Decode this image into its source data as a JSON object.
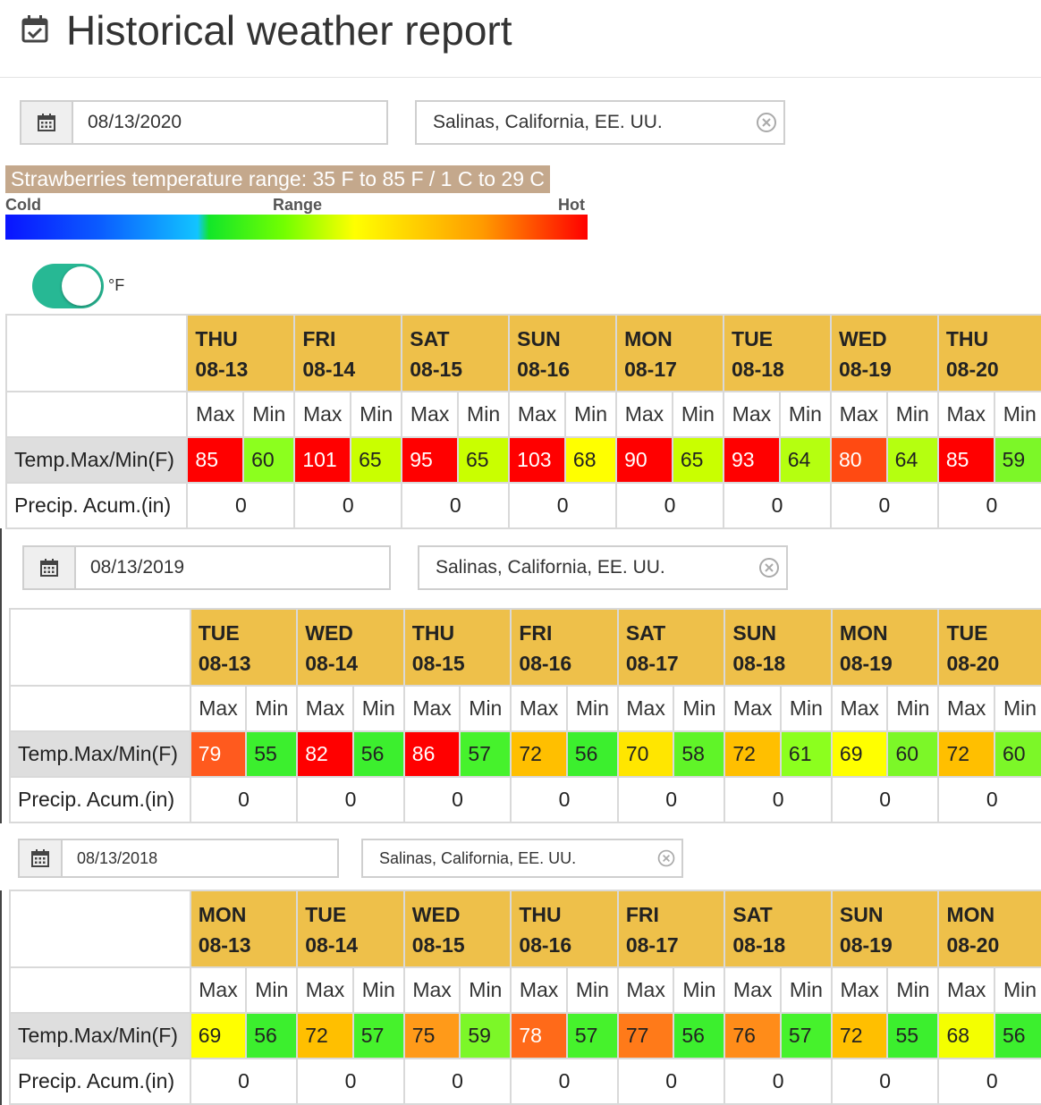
{
  "header": {
    "title": "Historical weather report",
    "icon": "calendar-check-icon"
  },
  "range_banner": "Strawberries temperature range: 35 F to 85 F / 1 C to 29 C",
  "legend": {
    "cold": "Cold",
    "range": "Range",
    "hot": "Hot"
  },
  "unit_toggle": {
    "on": true,
    "unit": "°F"
  },
  "labels": {
    "max": "Max",
    "min": "Min",
    "temp_row": "Temp.Max/Min(F)",
    "precip_row": "Precip. Acum.(in)"
  },
  "colors": {
    "red": "#ff0000",
    "orange_red": "#ff5a1e",
    "orange": "#ff8c19",
    "amber": "#ffbf00",
    "yellow": "#ffff00",
    "yellow_green": "#c9ff00",
    "lime": "#8cff1e",
    "green": "#3cef2e",
    "header_gold": "#eec04a",
    "toggle_teal": "#27b894",
    "banner_tan": "#c4a88c"
  },
  "reports": [
    {
      "date": "08/13/2020",
      "location": "Salinas, California, EE. UU.",
      "days": [
        {
          "dow": "THU",
          "date": "08-13",
          "max": "85",
          "min": "60",
          "precip": "0",
          "max_color": "#ff0000",
          "min_color": "#8cff1e"
        },
        {
          "dow": "FRI",
          "date": "08-14",
          "max": "101",
          "min": "65",
          "precip": "0",
          "max_color": "#ff0000",
          "min_color": "#c9ff00"
        },
        {
          "dow": "SAT",
          "date": "08-15",
          "max": "95",
          "min": "65",
          "precip": "0",
          "max_color": "#ff0000",
          "min_color": "#c9ff00"
        },
        {
          "dow": "SUN",
          "date": "08-16",
          "max": "103",
          "min": "68",
          "precip": "0",
          "max_color": "#ff0000",
          "min_color": "#ffff00"
        },
        {
          "dow": "MON",
          "date": "08-17",
          "max": "90",
          "min": "65",
          "precip": "0",
          "max_color": "#ff0000",
          "min_color": "#c9ff00"
        },
        {
          "dow": "TUE",
          "date": "08-18",
          "max": "93",
          "min": "64",
          "precip": "0",
          "max_color": "#ff0000",
          "min_color": "#b5ff10"
        },
        {
          "dow": "WED",
          "date": "08-19",
          "max": "80",
          "min": "64",
          "precip": "0",
          "max_color": "#ff4a12",
          "min_color": "#b5ff10"
        },
        {
          "dow": "THU",
          "date": "08-20",
          "max": "85",
          "min": "59",
          "precip": "0",
          "max_color": "#ff0000",
          "min_color": "#7cf728"
        }
      ]
    },
    {
      "date": "08/13/2019",
      "location": "Salinas, California, EE. UU.",
      "days": [
        {
          "dow": "TUE",
          "date": "08-13",
          "max": "79",
          "min": "55",
          "precip": "0",
          "max_color": "#ff5a1e",
          "min_color": "#3cef2e"
        },
        {
          "dow": "WED",
          "date": "08-14",
          "max": "82",
          "min": "56",
          "precip": "0",
          "max_color": "#ff0000",
          "min_color": "#3cef2e"
        },
        {
          "dow": "THU",
          "date": "08-15",
          "max": "86",
          "min": "57",
          "precip": "0",
          "max_color": "#ff0000",
          "min_color": "#46f22c"
        },
        {
          "dow": "FRI",
          "date": "08-16",
          "max": "72",
          "min": "56",
          "precip": "0",
          "max_color": "#ffbf00",
          "min_color": "#3cef2e"
        },
        {
          "dow": "SAT",
          "date": "08-17",
          "max": "70",
          "min": "58",
          "precip": "0",
          "max_color": "#ffe600",
          "min_color": "#60f428"
        },
        {
          "dow": "SUN",
          "date": "08-18",
          "max": "72",
          "min": "61",
          "precip": "0",
          "max_color": "#ffbf00",
          "min_color": "#8cff1e"
        },
        {
          "dow": "MON",
          "date": "08-19",
          "max": "69",
          "min": "60",
          "precip": "0",
          "max_color": "#ffff00",
          "min_color": "#7cf728"
        },
        {
          "dow": "TUE",
          "date": "08-20",
          "max": "72",
          "min": "60",
          "precip": "0",
          "max_color": "#ffbf00",
          "min_color": "#7cf728"
        }
      ]
    },
    {
      "date": "08/13/2018",
      "location": "Salinas, California, EE. UU.",
      "days": [
        {
          "dow": "MON",
          "date": "08-13",
          "max": "69",
          "min": "56",
          "precip": "0",
          "max_color": "#ffff00",
          "min_color": "#3cef2e"
        },
        {
          "dow": "TUE",
          "date": "08-14",
          "max": "72",
          "min": "57",
          "precip": "0",
          "max_color": "#ffbf00",
          "min_color": "#46f22c"
        },
        {
          "dow": "WED",
          "date": "08-15",
          "max": "75",
          "min": "59",
          "precip": "0",
          "max_color": "#ff9a19",
          "min_color": "#7cf728"
        },
        {
          "dow": "THU",
          "date": "08-16",
          "max": "78",
          "min": "57",
          "precip": "0",
          "max_color": "#ff6a19",
          "min_color": "#46f22c"
        },
        {
          "dow": "FRI",
          "date": "08-17",
          "max": "77",
          "min": "56",
          "precip": "0",
          "max_color": "#ff7a19",
          "min_color": "#3cef2e"
        },
        {
          "dow": "SAT",
          "date": "08-18",
          "max": "76",
          "min": "57",
          "precip": "0",
          "max_color": "#ff8c19",
          "min_color": "#46f22c"
        },
        {
          "dow": "SUN",
          "date": "08-19",
          "max": "72",
          "min": "55",
          "precip": "0",
          "max_color": "#ffbf00",
          "min_color": "#3cef2e"
        },
        {
          "dow": "MON",
          "date": "08-20",
          "max": "68",
          "min": "56",
          "precip": "0",
          "max_color": "#f4ff00",
          "min_color": "#3cef2e"
        }
      ]
    }
  ]
}
